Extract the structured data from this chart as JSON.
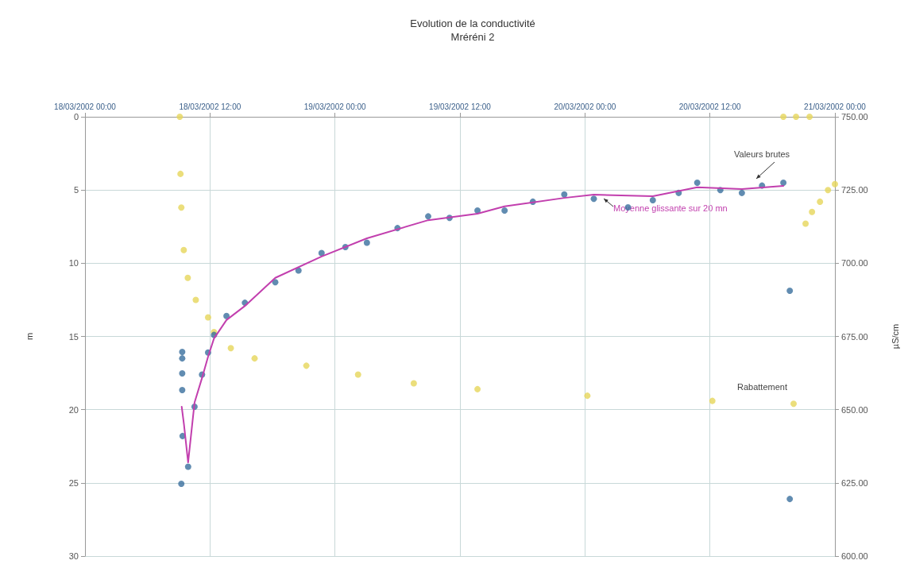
{
  "chart_data": {
    "type": "scatter",
    "title": "Evolution de la conductivité",
    "subtitle": "Mréréni 2",
    "ylabel": "m",
    "y2label": "µS/cm",
    "xlim": [
      "2002-03-18T00:00",
      "2002-03-21T00:00"
    ],
    "xticks": [
      {
        "value": "2002-03-18T00:00",
        "label": "18/03/2002 00:00"
      },
      {
        "value": "2002-03-18T12:00",
        "label": "18/03/2002 12:00"
      },
      {
        "value": "2002-03-19T00:00",
        "label": "19/03/2002 00:00"
      },
      {
        "value": "2002-03-19T12:00",
        "label": "19/03/2002 12:00"
      },
      {
        "value": "2002-03-20T00:00",
        "label": "20/03/2002 00:00"
      },
      {
        "value": "2002-03-20T12:00",
        "label": "20/03/2002 12:00"
      },
      {
        "value": "2002-03-21T00:00",
        "label": "21/03/2002 00:00"
      }
    ],
    "ylim": [
      30,
      0
    ],
    "yticks": [
      0,
      5,
      10,
      15,
      20,
      25,
      30
    ],
    "y2lim": [
      600,
      750
    ],
    "y2ticks": [
      {
        "value": 600,
        "label": "600.00"
      },
      {
        "value": 625,
        "label": "625.00"
      },
      {
        "value": 650,
        "label": "650.00"
      },
      {
        "value": 675,
        "label": "675.00"
      },
      {
        "value": 700,
        "label": "700.00"
      },
      {
        "value": 725,
        "label": "725.00"
      },
      {
        "value": 750,
        "label": "750.00"
      }
    ],
    "grid": true,
    "series": [
      {
        "name": "Rabattement",
        "marker": "circle",
        "color": "#e6d65a",
        "x": [
          "2002-03-18T09:06",
          "2002-03-18T09:10",
          "2002-03-18T09:15",
          "2002-03-18T09:29",
          "2002-03-18T09:52",
          "2002-03-18T10:38",
          "2002-03-18T11:49",
          "2002-03-18T12:23",
          "2002-03-18T14:00",
          "2002-03-18T16:17",
          "2002-03-18T21:15",
          "2002-03-19T02:13",
          "2002-03-19T07:34",
          "2002-03-19T13:41",
          "2002-03-20T00:14",
          "2002-03-20T12:14",
          "2002-03-20T20:02",
          "2002-03-20T19:03",
          "2002-03-20T20:16",
          "2002-03-20T21:34",
          "2002-03-20T21:11",
          "2002-03-20T21:48",
          "2002-03-20T22:34",
          "2002-03-20T23:20",
          "2002-03-21T00:00"
        ],
        "values": [
          0,
          3.9,
          6.2,
          9.1,
          11,
          12.5,
          13.7,
          14.7,
          15.8,
          16.5,
          17.0,
          17.6,
          18.2,
          18.6,
          19.05,
          19.4,
          19.6,
          0,
          0,
          0,
          7.3,
          6.5,
          5.8,
          5.0,
          4.6
        ]
      },
      {
        "name": "Valeurs brutes",
        "axis": "y2",
        "marker": "circle",
        "color": "#3a6f9e",
        "x": [
          "2002-03-18T09:15",
          "2002-03-18T09:20",
          "2002-03-18T09:20",
          "2002-03-18T09:20",
          "2002-03-18T09:20",
          "2002-03-18T09:22",
          "2002-03-18T09:54",
          "2002-03-18T10:31",
          "2002-03-18T11:14",
          "2002-03-18T11:49",
          "2002-03-18T12:23",
          "2002-03-18T13:35",
          "2002-03-18T15:21",
          "2002-03-18T18:16",
          "2002-03-18T20:30",
          "2002-03-18T22:43",
          "2002-03-19T01:00",
          "2002-03-19T03:04",
          "2002-03-19T06:00",
          "2002-03-19T08:57",
          "2002-03-19T11:00",
          "2002-03-19T13:41",
          "2002-03-19T16:17",
          "2002-03-19T19:00",
          "2002-03-19T22:01",
          "2002-03-20T00:51",
          "2002-03-20T04:08",
          "2002-03-20T06:31",
          "2002-03-20T09:00",
          "2002-03-20T10:47",
          "2002-03-20T13:00",
          "2002-03-20T15:04",
          "2002-03-20T17:00",
          "2002-03-20T19:03",
          "2002-03-20T19:40",
          "2002-03-20T19:40"
        ],
        "values": [
          624.7,
          669.7,
          667.5,
          662.4,
          656.7,
          641.0,
          630.5,
          651.0,
          662.0,
          669.5,
          675.5,
          682.0,
          686.5,
          693.5,
          697.5,
          703.5,
          705.5,
          707.0,
          712.0,
          716.0,
          715.5,
          718.0,
          718.0,
          721.0,
          723.5,
          722.0,
          719.1,
          721.5,
          724.0,
          727.5,
          725.0,
          724.0,
          726.5,
          727.5,
          690.6,
          619.5
        ]
      },
      {
        "name": "Moyenne glissante sur 20 mn",
        "type": "line",
        "axis": "y2",
        "marker": "none",
        "color": "#c23fae",
        "x": [
          "2002-03-18T09:17",
          "2002-03-18T09:30",
          "2002-03-18T09:54",
          "2002-03-18T10:31",
          "2002-03-18T11:14",
          "2002-03-18T11:49",
          "2002-03-18T12:23",
          "2002-03-18T13:35",
          "2002-03-18T15:21",
          "2002-03-18T18:16",
          "2002-03-18T22:43",
          "2002-03-19T03:04",
          "2002-03-19T08:57",
          "2002-03-19T13:41",
          "2002-03-19T16:17",
          "2002-03-19T22:01",
          "2002-03-20T00:51",
          "2002-03-20T06:31",
          "2002-03-20T10:47",
          "2002-03-20T15:04",
          "2002-03-20T19:03"
        ],
        "values": [
          651.0,
          645.0,
          632.0,
          652.4,
          660.8,
          668.1,
          674.3,
          680.6,
          685.4,
          695.0,
          702.3,
          708.5,
          714.7,
          716.9,
          719.4,
          722.3,
          723.4,
          722.9,
          725.9,
          725.3,
          726.4
        ]
      }
    ]
  }
}
